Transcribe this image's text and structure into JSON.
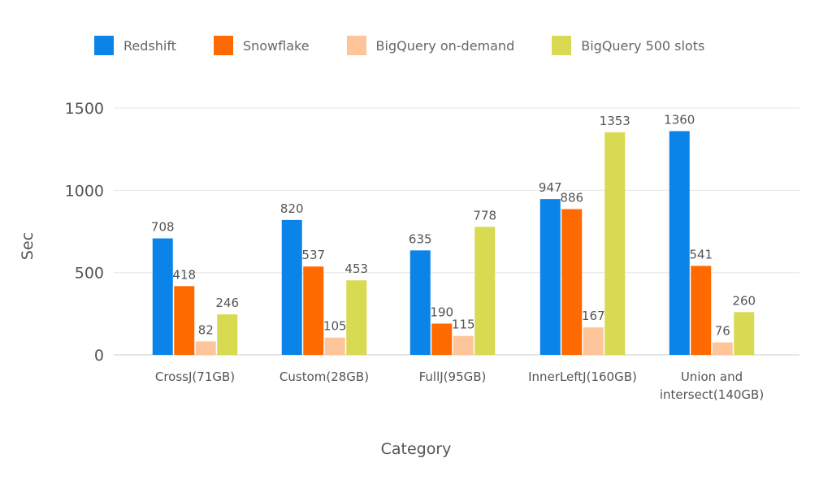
{
  "chart_data": {
    "type": "bar",
    "xlabel": "Category",
    "ylabel": "Sec",
    "ylim": [
      0,
      1600
    ],
    "yticks": [
      0,
      500,
      1000,
      1500
    ],
    "grid": true,
    "legend_position": "top",
    "categories": [
      "CrossJ(71GB)",
      "Custom(28GB)",
      "FullJ(95GB)",
      "InnerLeftJ(160GB)",
      "Union and intersect(140GB)"
    ],
    "series": [
      {
        "name": "Redshift",
        "color": "#0A84E8",
        "values": [
          708,
          820,
          635,
          947,
          1360
        ]
      },
      {
        "name": "Snowflake",
        "color": "#FF6A00",
        "values": [
          418,
          537,
          190,
          886,
          541
        ]
      },
      {
        "name": "BigQuery on-demand",
        "color": "#FFC59A",
        "values": [
          82,
          105,
          115,
          167,
          76
        ]
      },
      {
        "name": "BigQuery 500 slots",
        "color": "#D8DA52",
        "values": [
          246,
          453,
          778,
          1353,
          260
        ]
      }
    ]
  }
}
